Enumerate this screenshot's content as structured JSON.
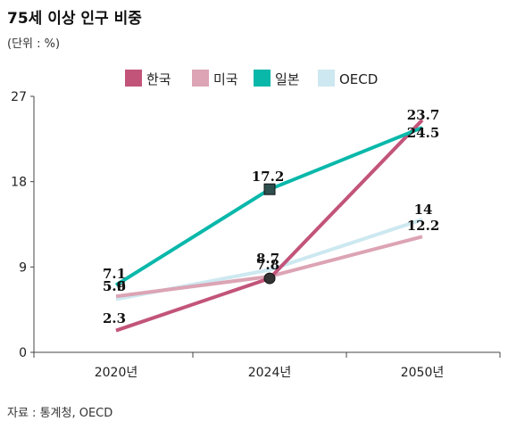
{
  "title": "75세 이상 인구 비중",
  "unit": "(단위 : %)",
  "source": "자료 : 통계청, OECD",
  "chart_data": {
    "type": "line",
    "x": [
      "2020년",
      "2024년",
      "2050년"
    ],
    "ylim": [
      0,
      27
    ],
    "yticks": [
      "0",
      "9",
      "18",
      "27"
    ],
    "legend_position": "top",
    "grid": false,
    "series": [
      {
        "name": "한국",
        "color": "#c2547a",
        "values": [
          2.3,
          7.8,
          24.5
        ],
        "labels": [
          "2.3",
          "7.8",
          "24.5"
        ],
        "marker": "circle"
      },
      {
        "name": "미국",
        "color": "#dca4b4",
        "values": [
          5.9,
          8.0,
          12.2
        ],
        "labels": [
          "5.9",
          "",
          "12.2"
        ],
        "marker": "none"
      },
      {
        "name": "일본",
        "color": "#0ab8aa",
        "values": [
          7.1,
          17.2,
          23.7
        ],
        "labels": [
          "7.1",
          "17.2",
          "23.7"
        ],
        "marker": "square"
      },
      {
        "name": "OECD",
        "color": "#cde8f0",
        "values": [
          5.6,
          8.7,
          14
        ],
        "labels": [
          "5.6",
          "8.7",
          "14"
        ],
        "marker": "none"
      }
    ]
  }
}
